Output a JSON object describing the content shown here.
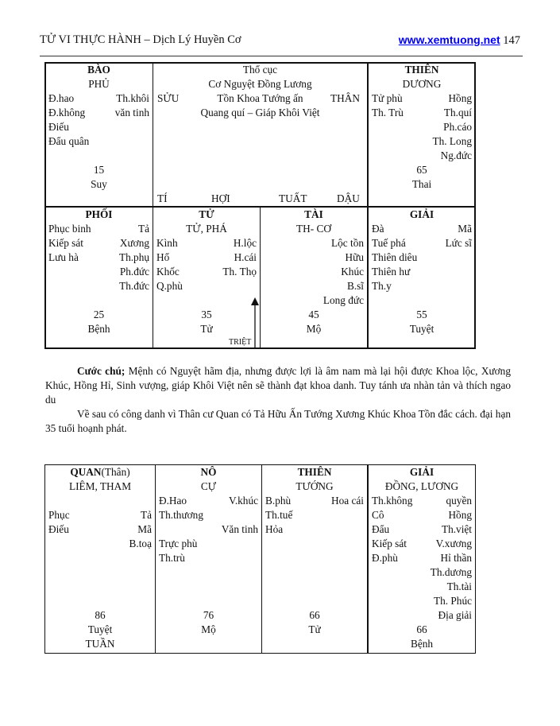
{
  "header": {
    "title": "TỬ VI THỰC HÀNH – Dịch Lý Huyền Cơ",
    "site": "www.xemtuong.net",
    "page": "147"
  },
  "chart1": {
    "center": {
      "line1": "Thổ cục",
      "line2": "Cơ Nguyệt Đồng Lương",
      "left": "SỬU",
      "mid": "Tồn Khoa Tướng ấn",
      "right": "THÂN",
      "line4": "Quang quí – Giáp Khôi Việt",
      "bottom": [
        "TÍ",
        "HỢI",
        "TUẤT",
        "DẬU"
      ]
    },
    "cells": [
      [
        {
          "b": "BÀO"
        },
        {
          "c": "PHỦ"
        },
        {
          "l": "Đ.hao",
          "r": "Th.khôi"
        },
        {
          "l": "Đ.không",
          "r": "văn tinh"
        },
        {
          "l": "Điếu"
        },
        {
          "l": "Đẩu quân"
        },
        {},
        {
          "c": "15"
        },
        {
          "c": "Suy"
        }
      ],
      [
        {
          "b": "THIÊN"
        },
        {
          "c": "DƯƠNG"
        },
        {
          "l": "Tử phù",
          "r": "Hồng"
        },
        {
          "l": "Th. Trù",
          "r": "Th.quí"
        },
        {
          "r": "Ph.cáo"
        },
        {
          "r": "Th. Long"
        },
        {
          "r": "Ng.đức"
        },
        {
          "c": "65"
        },
        {
          "c": "Thai"
        }
      ],
      [
        {
          "b": "PHỐI"
        },
        {
          "l": "Phục binh",
          "r": "Tả"
        },
        {
          "l": "Kiếp sát",
          "r": "Xương"
        },
        {
          "l": "Lưu hà",
          "r": "Th.phụ"
        },
        {
          "r": "Ph.đức"
        },
        {
          "r": "Th.đức"
        },
        {},
        {
          "c": "25"
        },
        {
          "c": "Bệnh"
        }
      ],
      [
        {
          "b": "TỬ"
        },
        {
          "c": "TỬ, PHÁ"
        },
        {
          "l": "Kình",
          "r": "H.lộc"
        },
        {
          "l": "Hổ",
          "r": "H.cái"
        },
        {
          "l": "Khốc",
          "r": "Th. Thọ"
        },
        {
          "l": "Q.phù"
        },
        {},
        {
          "c": "35"
        },
        {
          "c": "Tử"
        }
      ],
      [
        {
          "b": "TÀI"
        },
        {
          "c": "TH- CƠ"
        },
        {
          "r": "Lộc tồn"
        },
        {
          "r": "Hữu"
        },
        {
          "r": "Khúc"
        },
        {
          "r": "B.sĩ"
        },
        {
          "r": "Long đức"
        },
        {
          "c": "45"
        },
        {
          "c": "Mộ"
        }
      ],
      [
        {
          "b": "GIẢI"
        },
        {
          "l": "Đà",
          "r": "Mã"
        },
        {
          "l": "Tuế phá",
          "r": "Lức sĩ"
        },
        {
          "l": "Thiên diêu"
        },
        {
          "l": "Thiên hư"
        },
        {
          "l": "Th.y"
        },
        {},
        {
          "c": "55"
        },
        {
          "c": "Tuyệt"
        }
      ]
    ],
    "triet": "TRIỆT"
  },
  "commentary": {
    "label": "Cước chú;",
    "p1": " Mệnh có Nguyệt hãm địa, nhưng được lợi là âm nam mà lại hội được Khoa lộc, Xương Khúc, Hồng Hỉ, Sinh vượng, giáp Khôi Việt nên sẽ thành đạt khoa danh. Tuy tánh ưa nhàn tản và thích ngao du",
    "p2": "Về sau có công danh vì Thân cư Quan có Tả Hữu Ấn Tướng Xương Khúc Khoa Tồn đắc cách. đại hạn 35 tuổi hoạnh phát."
  },
  "chart2": {
    "cells": [
      [
        {
          "b": "QUAN",
          "c": "(Thân)"
        },
        {
          "c": "LIÊM, THAM"
        },
        {},
        {
          "l": "Phục",
          "r": "Tả"
        },
        {
          "l": "Điếu",
          "r": "Mã"
        },
        {
          "r": "B.toạ"
        },
        {},
        {},
        {},
        {},
        {
          "c": "86"
        },
        {
          "c": "Tuyệt"
        },
        {
          "c": "TUẦN"
        }
      ],
      [
        {
          "b": "NÔ"
        },
        {
          "c": "CỰ"
        },
        {
          "l": "Đ.Hao",
          "r": "V.khúc"
        },
        {
          "l": "Th.thương"
        },
        {
          "r": "Văn tinh"
        },
        {
          "l": "Trực phù"
        },
        {
          "l": "Th.trù"
        },
        {},
        {},
        {},
        {
          "c": "76"
        },
        {
          "c": "Mộ"
        }
      ],
      [
        {
          "b": "THIÊN"
        },
        {
          "c": "TƯỚNG"
        },
        {
          "l": "B.phù",
          "r": "Hoa cái"
        },
        {
          "l": "Th.tuế"
        },
        {
          "l": "Hỏa"
        },
        {},
        {},
        {},
        {},
        {},
        {
          "c": "66"
        },
        {
          "c": "Tử"
        }
      ],
      [
        {
          "b": "GIẢI"
        },
        {
          "c": "ĐỒNG, LƯƠNG"
        },
        {
          "l": "Th.không",
          "r": "quyền"
        },
        {
          "l": "Cô",
          "r": "Hồng"
        },
        {
          "l": "Đẩu",
          "r": "Th.việt"
        },
        {
          "l": "Kiếp sát",
          "r": "V.xương"
        },
        {
          "l": "Đ.phù",
          "r": "Hỉ thần"
        },
        {
          "r": "Th.dương"
        },
        {
          "r": "Th.tài"
        },
        {
          "r": "Th. Phúc"
        },
        {
          "r": "Địa giải"
        },
        {
          "c": "66"
        },
        {
          "c": "Bệnh"
        }
      ]
    ]
  }
}
